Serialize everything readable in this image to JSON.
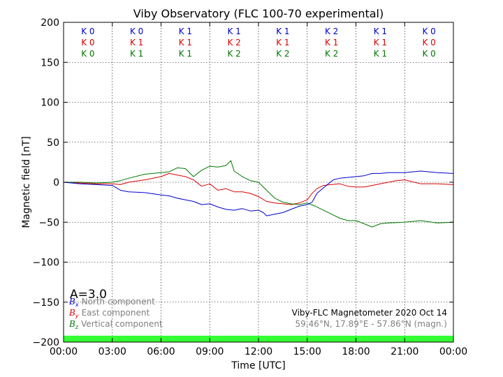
{
  "chart_data": {
    "type": "line",
    "title": "Viby Observatory (FLC 100-70 experimental)",
    "xlabel": "Time [UTC]",
    "ylabel": "Magnetic field [nT]",
    "x_unit": "hours",
    "xlim": [
      0,
      24
    ],
    "ylim": [
      -200,
      200
    ],
    "grid": true,
    "x_ticks": [
      {
        "value": 0,
        "label": "00:00"
      },
      {
        "value": 3,
        "label": "03:00"
      },
      {
        "value": 6,
        "label": "06:00"
      },
      {
        "value": 9,
        "label": "09:00"
      },
      {
        "value": 12,
        "label": "12:00"
      },
      {
        "value": 15,
        "label": "15:00"
      },
      {
        "value": 18,
        "label": "18:00"
      },
      {
        "value": 21,
        "label": "21:00"
      },
      {
        "value": 24,
        "label": "00:00"
      }
    ],
    "y_ticks": [
      {
        "value": 200,
        "label": "200"
      },
      {
        "value": 150,
        "label": "150"
      },
      {
        "value": 100,
        "label": "100"
      },
      {
        "value": 50,
        "label": "50"
      },
      {
        "value": 0,
        "label": "0"
      },
      {
        "value": -50,
        "label": "−50"
      },
      {
        "value": -100,
        "label": "−100"
      },
      {
        "value": -150,
        "label": "−150"
      },
      {
        "value": -200,
        "label": "−200"
      }
    ],
    "k_index": {
      "block_centers": [
        1.5,
        4.5,
        7.5,
        10.5,
        13.5,
        16.5,
        19.5,
        22.5
      ],
      "rows": [
        {
          "color": "#0000cc",
          "labels": [
            "K 0",
            "K 0",
            "K 1",
            "K 1",
            "K 1",
            "K 2",
            "K 1",
            "K 0"
          ]
        },
        {
          "color": "#dd0000",
          "labels": [
            "K 0",
            "K 1",
            "K 1",
            "K 2",
            "K 1",
            "K 1",
            "K 1",
            "K 0"
          ]
        },
        {
          "color": "#007700",
          "labels": [
            "K 0",
            "K 1",
            "K 1",
            "K 2",
            "K 2",
            "K 2",
            "K 1",
            "K 0"
          ]
        }
      ]
    },
    "activity_index": "A=3.0",
    "status_bar": {
      "color": "#33ff33",
      "from": 0,
      "to": 24
    },
    "series": [
      {
        "name": "North component",
        "symbol": "B",
        "subscript": "x",
        "color": "#0000cc",
        "x": [
          0,
          1,
          2,
          3,
          3.5,
          4,
          5,
          6,
          6.5,
          7,
          7.5,
          8,
          8.5,
          9,
          9.5,
          10,
          10.5,
          11,
          11.5,
          12,
          12.3,
          12.5,
          13,
          13.5,
          14,
          14.5,
          15,
          15.3,
          15.6,
          16,
          16.3,
          16.6,
          17,
          17.5,
          18,
          18.5,
          19,
          19.5,
          20,
          21,
          22,
          23,
          24
        ],
        "y": [
          0,
          -2,
          -3,
          -4,
          -10,
          -12,
          -13,
          -16,
          -17,
          -20,
          -22,
          -24,
          -28,
          -27,
          -31,
          -34,
          -35,
          -33,
          -36,
          -35,
          -38,
          -42,
          -40,
          -38,
          -34,
          -30,
          -28,
          -25,
          -14,
          -7,
          -2,
          3,
          5,
          6,
          7,
          8,
          11,
          11,
          12,
          12,
          14,
          12,
          11
        ]
      },
      {
        "name": "East component",
        "symbol": "B",
        "subscript": "y",
        "color": "#dd0000",
        "x": [
          0,
          1,
          2,
          3,
          3.5,
          4,
          5,
          6,
          6.5,
          7,
          7.5,
          8,
          8.5,
          9,
          9.5,
          10,
          10.5,
          11,
          11.5,
          12,
          12.5,
          13,
          13.5,
          14,
          14.5,
          15,
          15.3,
          15.6,
          16,
          16.5,
          17,
          17.5,
          18,
          18.5,
          19,
          19.5,
          20,
          20.5,
          21,
          22,
          23,
          24
        ],
        "y": [
          0,
          -1,
          -2,
          -2,
          -3,
          0,
          3,
          7,
          11,
          9,
          7,
          3,
          -5,
          -2,
          -10,
          -8,
          -12,
          -12,
          -14,
          -18,
          -24,
          -26,
          -27,
          -28,
          -26,
          -22,
          -14,
          -8,
          -4,
          -3,
          -2,
          -5,
          -6,
          -6,
          -4,
          -2,
          0,
          2,
          3,
          -2,
          -2,
          -3
        ]
      },
      {
        "name": "Vertical component",
        "symbol": "B",
        "subscript": "z",
        "color": "#007700",
        "x": [
          0,
          1,
          2,
          3,
          3.5,
          4,
          5,
          6,
          6.5,
          7,
          7.5,
          8,
          8.5,
          9,
          9.5,
          10,
          10.3,
          10.5,
          11,
          11.5,
          12,
          12.5,
          13,
          13.5,
          14,
          14.5,
          15,
          15.5,
          16,
          16.5,
          17,
          17.5,
          18,
          18.5,
          19,
          19.5,
          20,
          21,
          22,
          23,
          24
        ],
        "y": [
          0,
          0,
          -1,
          0,
          2,
          5,
          10,
          12,
          13,
          18,
          17,
          7,
          15,
          20,
          19,
          21,
          27,
          14,
          7,
          2,
          0,
          -10,
          -20,
          -25,
          -27,
          -28,
          -26,
          -30,
          -35,
          -40,
          -45,
          -48,
          -48,
          -52,
          -56,
          -52,
          -51,
          -50,
          -48,
          -51,
          -50
        ]
      }
    ],
    "footer_right": {
      "line1": "Viby-FLC Magnetometer 2020 Oct 14",
      "line2": "59.46°N, 17.89°E - 57.86°N (magn.)"
    }
  }
}
